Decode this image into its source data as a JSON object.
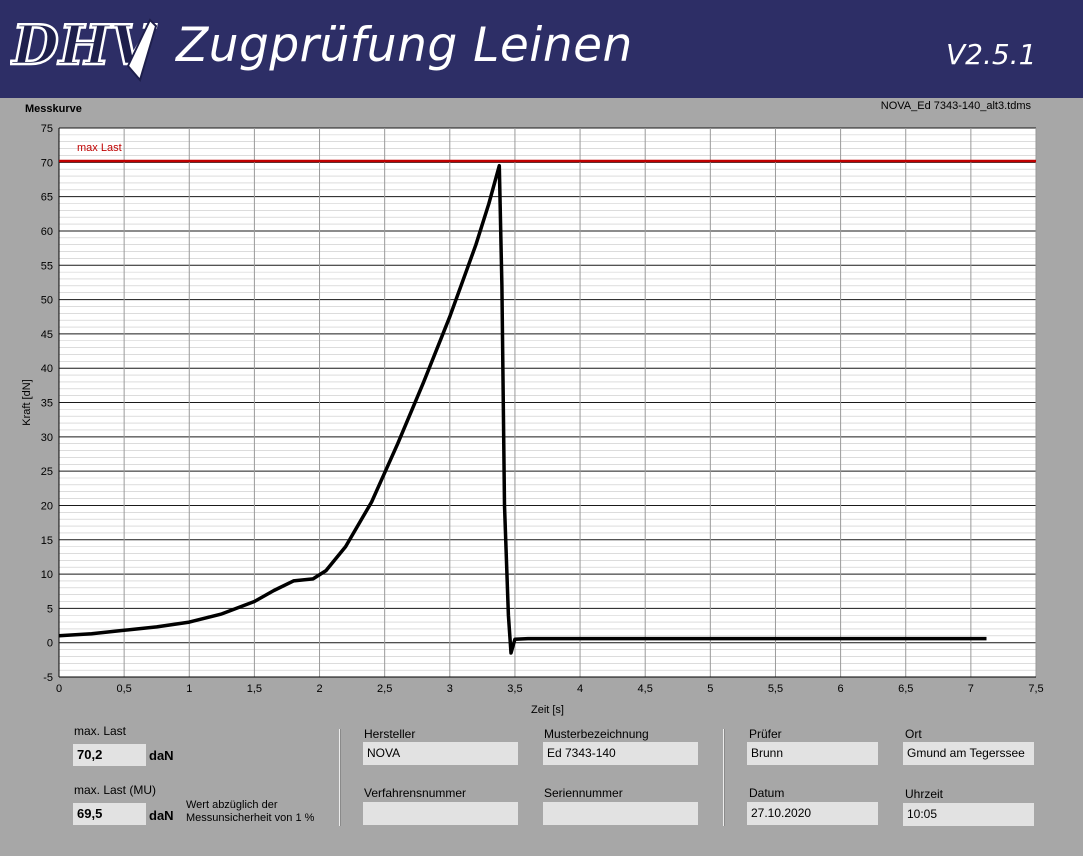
{
  "header": {
    "logo_text": "DHV",
    "title": "Zugprüfung Leinen",
    "version": "V2.5.1"
  },
  "chart_panel": {
    "label": "Messkurve",
    "file_name": "NOVA_Ed 7343-140_alt3.tdms"
  },
  "chart_data": {
    "type": "line",
    "xlabel": "Zeit [s]",
    "ylabel": "Kraft [dN]",
    "xlim": [
      0,
      7.5
    ],
    "ylim": [
      -5,
      75
    ],
    "x_ticks": [
      "0",
      "0,5",
      "1",
      "1,5",
      "2",
      "2,5",
      "3",
      "3,5",
      "4",
      "4,5",
      "5",
      "5,5",
      "6",
      "6,5",
      "7",
      "7,5"
    ],
    "y_ticks": [
      "75",
      "70",
      "65",
      "60",
      "55",
      "50",
      "45",
      "40",
      "35",
      "30",
      "25",
      "20",
      "15",
      "10",
      "5",
      "0",
      "-5"
    ],
    "grid": true,
    "reference_line": {
      "label": "max Last",
      "value": 70.2,
      "color": "#c00000"
    },
    "series": [
      {
        "color": "#000000",
        "x": [
          0,
          0.25,
          0.5,
          0.75,
          1.0,
          1.25,
          1.5,
          1.65,
          1.8,
          1.95,
          2.05,
          2.2,
          2.4,
          2.6,
          2.8,
          3.0,
          3.2,
          3.3,
          3.38,
          3.4,
          3.42,
          3.45,
          3.47,
          3.5,
          3.6,
          4.0,
          5.0,
          6.0,
          7.0,
          7.12
        ],
        "y": [
          1.0,
          1.3,
          1.8,
          2.3,
          3.0,
          4.2,
          6.0,
          7.6,
          9.0,
          9.3,
          10.5,
          14.0,
          20.5,
          29.0,
          38.0,
          47.5,
          58.0,
          64.0,
          69.5,
          52.0,
          20.0,
          4.0,
          -1.5,
          0.5,
          0.6,
          0.6,
          0.6,
          0.6,
          0.6,
          0.6
        ]
      }
    ]
  },
  "results": {
    "max_last_label": "max. Last",
    "max_last_value": "70,2",
    "max_last_unit": "daN",
    "max_last_mu_label": "max. Last (MU)",
    "max_last_mu_value": "69,5",
    "max_last_mu_unit": "daN",
    "note": "Wert abzüglich der Messunsicherheit von 1 %"
  },
  "info": {
    "hersteller_label": "Hersteller",
    "hersteller_value": "NOVA",
    "muster_label": "Musterbezeichnung",
    "muster_value": "Ed 7343-140",
    "verfahren_label": "Verfahrensnummer",
    "verfahren_value": "",
    "serien_label": "Seriennummer",
    "serien_value": "",
    "pruefer_label": "Prüfer",
    "pruefer_value": "Brunn",
    "ort_label": "Ort",
    "ort_value": "Gmund am Tegerssee",
    "datum_label": "Datum",
    "datum_value": "27.10.2020",
    "uhrzeit_label": "Uhrzeit",
    "uhrzeit_value": "10:05"
  },
  "colors": {
    "header_bg": "#2d2e66",
    "panel_bg": "#a7a7a7",
    "plot_bg": "#ffffff",
    "max_line": "#c00000"
  }
}
